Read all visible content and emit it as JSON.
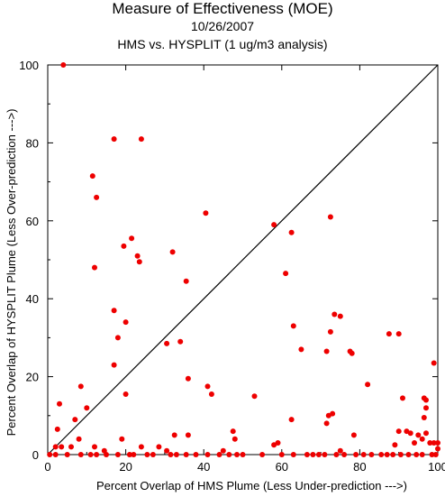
{
  "chart_data": {
    "type": "scatter",
    "title": "Measure of Effectiveness (MOE)",
    "subtitle": "10/26/2007",
    "subtitle2": "HMS vs. HYSPLIT  (1 ug/m3 analysis)",
    "xlabel": "Percent Overlap of HMS Plume (Less Under-prediction --->)",
    "ylabel": "Percent Overlap of HYSPLIT Plume (Less Over-prediction --->)",
    "xlim": [
      0,
      100
    ],
    "ylim": [
      0,
      100
    ],
    "xticks": [
      "0",
      "20",
      "40",
      "60",
      "80",
      "100"
    ],
    "yticks": [
      "0",
      "20",
      "40",
      "60",
      "80",
      "100"
    ],
    "grid": false,
    "reference_line": "diagonal y = x",
    "point_color": "#ee0000",
    "points": [
      [
        4,
        100
      ],
      [
        17,
        81
      ],
      [
        24,
        81
      ],
      [
        11.5,
        71.5
      ],
      [
        12.5,
        66
      ],
      [
        40.5,
        62
      ],
      [
        58,
        59
      ],
      [
        72.5,
        61
      ],
      [
        21.5,
        55.5
      ],
      [
        19.5,
        53.5
      ],
      [
        23,
        51
      ],
      [
        23.5,
        49.5
      ],
      [
        32,
        52
      ],
      [
        12,
        48
      ],
      [
        62.5,
        57
      ],
      [
        61,
        46.5
      ],
      [
        35.5,
        44.5
      ],
      [
        17,
        37
      ],
      [
        20,
        34
      ],
      [
        18,
        30
      ],
      [
        63,
        33
      ],
      [
        73.5,
        36
      ],
      [
        75,
        35.5
      ],
      [
        30.5,
        28.5
      ],
      [
        34,
        29
      ],
      [
        65,
        27
      ],
      [
        72.5,
        31.5
      ],
      [
        77.5,
        26.5
      ],
      [
        78,
        26
      ],
      [
        71.5,
        26.5
      ],
      [
        87.5,
        31
      ],
      [
        90,
        31
      ],
      [
        17,
        23
      ],
      [
        36,
        19.5
      ],
      [
        41,
        17.5
      ],
      [
        42,
        15.5
      ],
      [
        8.5,
        17.5
      ],
      [
        20,
        15.5
      ],
      [
        53,
        15
      ],
      [
        82,
        18
      ],
      [
        99,
        23.5
      ],
      [
        3,
        13
      ],
      [
        10,
        12
      ],
      [
        91,
        14.5
      ],
      [
        96.5,
        14.5
      ],
      [
        97,
        14
      ],
      [
        97,
        12
      ],
      [
        72,
        10
      ],
      [
        73,
        10.5
      ],
      [
        62.5,
        9
      ],
      [
        71.5,
        8
      ],
      [
        96.5,
        9.5
      ],
      [
        7,
        9
      ],
      [
        2.5,
        6.5
      ],
      [
        47.5,
        6
      ],
      [
        90,
        6
      ],
      [
        92,
        6
      ],
      [
        93,
        5.5
      ],
      [
        97,
        5.5
      ],
      [
        32.5,
        5
      ],
      [
        36,
        5
      ],
      [
        48,
        4
      ],
      [
        78.5,
        5
      ],
      [
        95,
        5
      ],
      [
        96,
        4
      ],
      [
        94,
        3
      ],
      [
        98,
        3
      ],
      [
        99,
        3
      ],
      [
        100,
        3
      ],
      [
        8,
        4
      ],
      [
        19,
        4
      ],
      [
        6,
        2
      ],
      [
        12,
        2
      ],
      [
        24,
        2
      ],
      [
        28.5,
        2
      ],
      [
        2,
        2
      ],
      [
        3.5,
        2
      ],
      [
        14.5,
        1
      ],
      [
        30.5,
        1
      ],
      [
        45,
        1
      ],
      [
        58,
        2.5
      ],
      [
        59,
        3
      ],
      [
        75,
        1
      ],
      [
        89,
        2.5
      ],
      [
        100,
        1.5
      ],
      [
        0.5,
        0
      ],
      [
        2,
        0
      ],
      [
        5,
        0
      ],
      [
        8.5,
        0
      ],
      [
        11,
        0
      ],
      [
        12.5,
        0
      ],
      [
        15,
        0
      ],
      [
        18,
        0
      ],
      [
        21,
        0
      ],
      [
        22,
        0
      ],
      [
        25.5,
        0
      ],
      [
        27,
        0
      ],
      [
        31.5,
        0
      ],
      [
        33,
        0
      ],
      [
        35.5,
        0
      ],
      [
        38,
        0
      ],
      [
        41,
        0
      ],
      [
        44,
        0
      ],
      [
        46.5,
        0
      ],
      [
        48.5,
        0
      ],
      [
        50,
        0
      ],
      [
        55,
        0
      ],
      [
        60,
        0
      ],
      [
        63,
        0
      ],
      [
        66.5,
        0
      ],
      [
        68,
        0
      ],
      [
        69.5,
        0
      ],
      [
        71,
        0
      ],
      [
        74,
        0
      ],
      [
        76,
        0
      ],
      [
        79,
        0
      ],
      [
        81,
        0
      ],
      [
        83,
        0
      ],
      [
        85.5,
        0
      ],
      [
        87,
        0
      ],
      [
        88.5,
        0
      ],
      [
        90.5,
        0
      ],
      [
        92.5,
        0
      ],
      [
        94.5,
        0
      ],
      [
        96,
        0
      ],
      [
        98.5,
        0
      ],
      [
        99.5,
        0
      ]
    ]
  }
}
